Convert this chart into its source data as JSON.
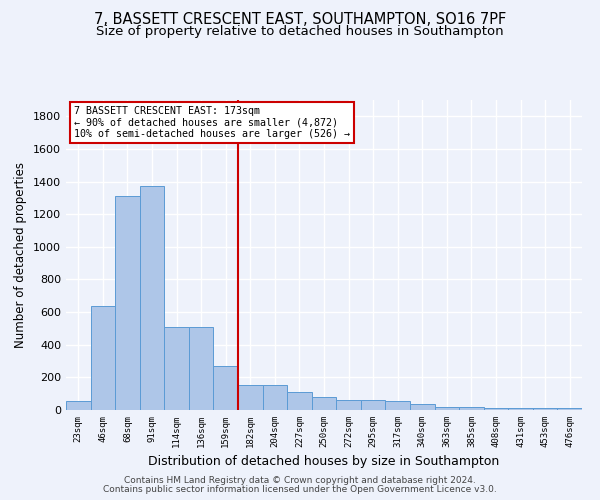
{
  "title1": "7, BASSETT CRESCENT EAST, SOUTHAMPTON, SO16 7PF",
  "title2": "Size of property relative to detached houses in Southampton",
  "xlabel": "Distribution of detached houses by size in Southampton",
  "ylabel": "Number of detached properties",
  "footnote1": "Contains HM Land Registry data © Crown copyright and database right 2024.",
  "footnote2": "Contains public sector information licensed under the Open Government Licence v3.0.",
  "bar_labels": [
    "23sqm",
    "46sqm",
    "68sqm",
    "91sqm",
    "114sqm",
    "136sqm",
    "159sqm",
    "182sqm",
    "204sqm",
    "227sqm",
    "250sqm",
    "272sqm",
    "295sqm",
    "317sqm",
    "340sqm",
    "363sqm",
    "385sqm",
    "408sqm",
    "431sqm",
    "453sqm",
    "476sqm"
  ],
  "bar_values": [
    55,
    640,
    1310,
    1370,
    510,
    510,
    270,
    155,
    155,
    110,
    80,
    60,
    60,
    55,
    35,
    20,
    20,
    10,
    10,
    10,
    10
  ],
  "bar_color": "#aec6e8",
  "bar_edge_color": "#5b9bd5",
  "vline_x_index": 7,
  "vline_color": "#cc0000",
  "annotation_text": "7 BASSETT CRESCENT EAST: 173sqm\n← 90% of detached houses are smaller (4,872)\n10% of semi-detached houses are larger (526) →",
  "annotation_box_color": "#ffffff",
  "annotation_box_edge": "#cc0000",
  "ylim": [
    0,
    1900
  ],
  "yticks": [
    0,
    200,
    400,
    600,
    800,
    1000,
    1200,
    1400,
    1600,
    1800
  ],
  "background_color": "#eef2fb",
  "grid_color": "#ffffff",
  "title1_fontsize": 10.5,
  "title2_fontsize": 9.5,
  "footnote_fontsize": 6.5
}
